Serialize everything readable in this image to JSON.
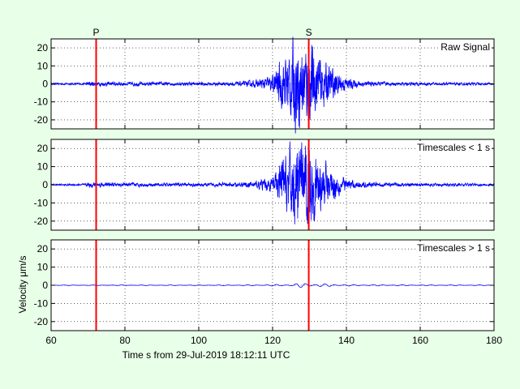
{
  "figure": {
    "background": "#e8ffe8"
  },
  "chart_data": {
    "type": "line",
    "xlabel": "Time s from 29-Jul-2019 18:12:11 UTC",
    "ylabel": "Velocity μm/s",
    "xlim": [
      60,
      180
    ],
    "xticks": [
      60,
      80,
      100,
      120,
      140,
      160,
      180
    ],
    "ylim": [
      -25,
      25
    ],
    "yticks": [
      -20,
      -10,
      0,
      10,
      20
    ],
    "grid": true,
    "line_color": "#0000ff",
    "marker_color": "#ff0000",
    "phase_markers": [
      {
        "label": "P",
        "x": 72.2
      },
      {
        "label": "S",
        "x": 129.8
      }
    ],
    "panels": [
      {
        "label": "Raw Signal",
        "noise_amp": 0.6,
        "p_onset_amp": 1.3,
        "envelope": [
          [
            60,
            0.4
          ],
          [
            69,
            0.5
          ],
          [
            70,
            1.3
          ],
          [
            75,
            1.0
          ],
          [
            100,
            0.8
          ],
          [
            110,
            1.0
          ],
          [
            115,
            1.6
          ],
          [
            120,
            4
          ],
          [
            122,
            11
          ],
          [
            124,
            16
          ],
          [
            126,
            21
          ],
          [
            128,
            20
          ],
          [
            130,
            19
          ],
          [
            132,
            15
          ],
          [
            134,
            11
          ],
          [
            136,
            8
          ],
          [
            138,
            5
          ],
          [
            140,
            3
          ],
          [
            143,
            1.6
          ],
          [
            150,
            0.9
          ],
          [
            165,
            0.7
          ],
          [
            180,
            0.6
          ]
        ]
      },
      {
        "label": "Timescales < 1 s",
        "noise_amp": 0.6,
        "p_onset_amp": 1.3,
        "envelope": [
          [
            60,
            0.4
          ],
          [
            69,
            0.5
          ],
          [
            70,
            1.3
          ],
          [
            75,
            1.0
          ],
          [
            100,
            0.8
          ],
          [
            110,
            1.0
          ],
          [
            115,
            1.6
          ],
          [
            120,
            4
          ],
          [
            122,
            11
          ],
          [
            124,
            15
          ],
          [
            126,
            20
          ],
          [
            128,
            20
          ],
          [
            130,
            19
          ],
          [
            132,
            15
          ],
          [
            134,
            11
          ],
          [
            136,
            8
          ],
          [
            138,
            5
          ],
          [
            140,
            3
          ],
          [
            143,
            1.6
          ],
          [
            150,
            0.9
          ],
          [
            165,
            0.7
          ],
          [
            180,
            0.6
          ]
        ]
      },
      {
        "label": "Timescales > 1 s",
        "noise_amp": 0.0,
        "p_onset_amp": 0.0,
        "envelope": [
          [
            60,
            0.15
          ],
          [
            110,
            0.2
          ],
          [
            120,
            0.4
          ],
          [
            125,
            0.7
          ],
          [
            128,
            1.3
          ],
          [
            131,
            1.2
          ],
          [
            134,
            0.8
          ],
          [
            140,
            0.4
          ],
          [
            160,
            0.25
          ],
          [
            180,
            0.2
          ]
        ]
      }
    ]
  }
}
